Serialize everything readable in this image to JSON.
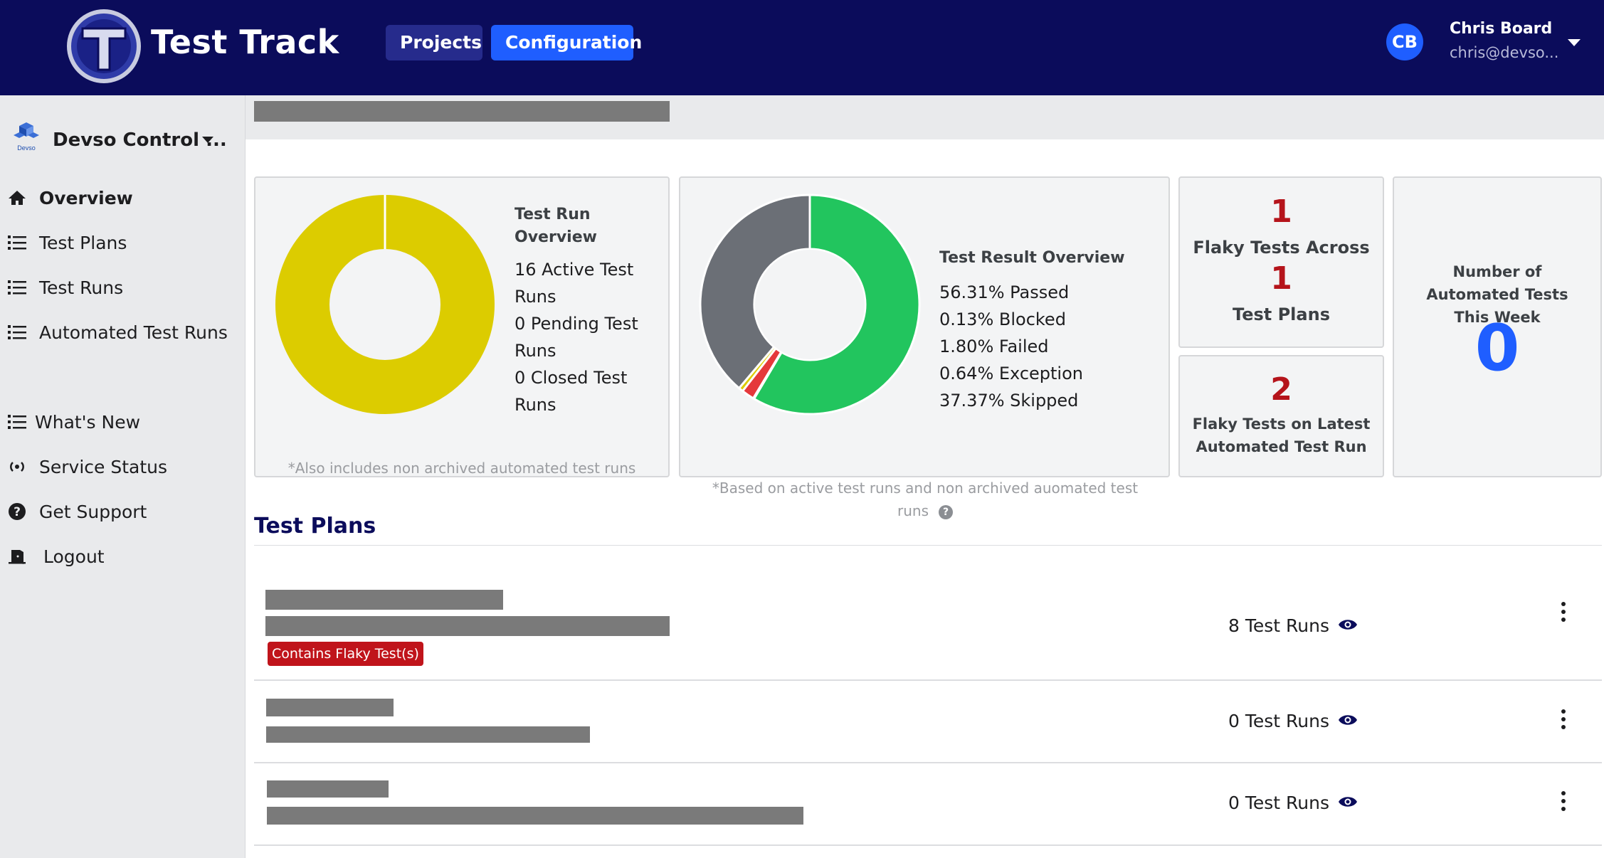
{
  "header": {
    "title": "Test Track",
    "nav": {
      "projects": "Projects",
      "configuration": "Configuration"
    },
    "user": {
      "initials": "CB",
      "name": "Chris Board",
      "email": "chris@devso..."
    }
  },
  "sidebar": {
    "org_logo_text": "Devso",
    "org_name": "Devso Control ...",
    "items": [
      {
        "label": "Overview",
        "icon": "home-icon",
        "active": true
      },
      {
        "label": "Test Plans",
        "icon": "list-icon"
      },
      {
        "label": "Test Runs",
        "icon": "list-icon"
      },
      {
        "label": "Automated Test Runs",
        "icon": "list-icon"
      },
      {
        "label": "What's New",
        "icon": "list-icon"
      },
      {
        "label": "Service Status",
        "icon": "broadcast-icon"
      },
      {
        "label": "Get Support",
        "icon": "question-circle-icon"
      },
      {
        "label": "Logout",
        "icon": "door-exit-icon"
      }
    ]
  },
  "overview": {
    "test_run": {
      "title": "Test Run Overview",
      "lines": [
        "16 Active Test Runs",
        "0 Pending Test Runs",
        "0 Closed Test Runs"
      ],
      "note": "*Also includes non archived automated test runs"
    },
    "test_result": {
      "title": "Test Result Overview",
      "lines": [
        "56.31% Passed",
        "0.13% Blocked",
        "1.80% Failed",
        "0.64% Exception",
        "37.37% Skipped"
      ],
      "note": "*Based on active test runs and non archived auomated test runs"
    },
    "flaky_across": {
      "count_top": "1",
      "label_top": "Flaky Tests Across",
      "count_bottom": "1",
      "label_bottom": "Test Plans"
    },
    "flaky_latest": {
      "count": "2",
      "label": "Flaky Tests on Latest Automated Test Run"
    },
    "automated_week": {
      "label": "Number of Automated Tests This Week",
      "count": "0"
    }
  },
  "chart_data": [
    {
      "type": "pie",
      "categories": [
        "Active",
        "Pending",
        "Closed"
      ],
      "values": [
        16,
        0,
        0
      ],
      "colors": [
        "#dccc00",
        "#1f5eff",
        "#6b6f76"
      ]
    },
    {
      "type": "pie",
      "categories": [
        "Passed",
        "Blocked",
        "Failed",
        "Exception",
        "Skipped"
      ],
      "values": [
        56.31,
        0.13,
        1.8,
        0.64,
        37.37
      ],
      "colors": [
        "#22c55e",
        "#f5a623",
        "#e5383b",
        "#dccc00",
        "#6b6f76"
      ]
    }
  ],
  "test_plans": {
    "title": "Test Plans",
    "rows": [
      {
        "runs": "8 Test Runs",
        "badge": "Contains Flaky Test(s)"
      },
      {
        "runs": "0 Test Runs"
      },
      {
        "runs": "0 Test Runs"
      }
    ]
  }
}
